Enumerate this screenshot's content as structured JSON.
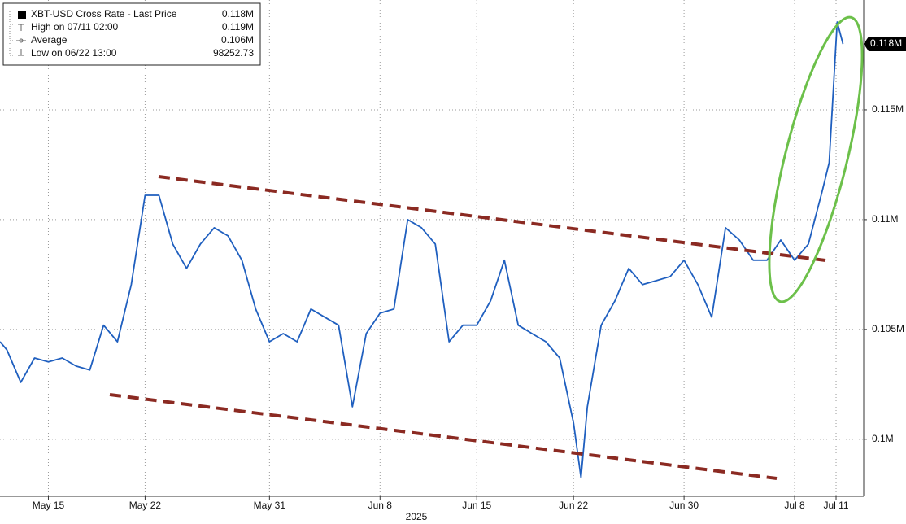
{
  "chart_data": {
    "type": "line",
    "xlabel": "2025",
    "x": [
      "2025-05-11T12:00",
      "2025-05-12",
      "2025-05-13",
      "2025-05-14",
      "2025-05-15",
      "2025-05-16",
      "2025-05-17",
      "2025-05-18",
      "2025-05-19",
      "2025-05-20",
      "2025-05-21",
      "2025-05-22",
      "2025-05-23",
      "2025-05-24",
      "2025-05-25",
      "2025-05-26",
      "2025-05-27",
      "2025-05-28",
      "2025-05-29",
      "2025-05-30",
      "2025-05-31",
      "2025-06-01",
      "2025-06-02",
      "2025-06-03",
      "2025-06-04",
      "2025-06-05",
      "2025-06-06",
      "2025-06-07",
      "2025-06-08",
      "2025-06-09",
      "2025-06-10",
      "2025-06-11",
      "2025-06-12",
      "2025-06-13",
      "2025-06-14",
      "2025-06-15",
      "2025-06-16",
      "2025-06-17",
      "2025-06-18",
      "2025-06-19",
      "2025-06-20",
      "2025-06-21",
      "2025-06-22",
      "2025-06-22T13:00",
      "2025-06-23",
      "2025-06-24",
      "2025-06-25",
      "2025-06-26",
      "2025-06-27",
      "2025-06-28",
      "2025-06-29",
      "2025-06-30",
      "2025-07-01",
      "2025-07-02",
      "2025-07-03",
      "2025-07-04",
      "2025-07-05",
      "2025-07-06",
      "2025-07-07",
      "2025-07-08",
      "2025-07-09",
      "2025-07-10",
      "2025-07-10T12:00",
      "2025-07-11T02:00",
      "2025-07-11T12:00"
    ],
    "series": [
      {
        "name": "XBT-USD Cross Rate - Last Price",
        "color": "#1f5fbf",
        "values": [
          104440,
          104070,
          102590,
          103700,
          103520,
          103700,
          103330,
          103150,
          105190,
          104440,
          107040,
          111110,
          111110,
          108890,
          107780,
          108890,
          109630,
          109260,
          108150,
          105930,
          104440,
          104810,
          104440,
          105930,
          105560,
          105190,
          101480,
          104810,
          105740,
          105930,
          110000,
          109630,
          108890,
          104440,
          105190,
          105190,
          106300,
          108150,
          105190,
          104810,
          104440,
          103700,
          100740,
          98252.73,
          101480,
          105190,
          106300,
          107780,
          107040,
          107220,
          107410,
          108150,
          107040,
          105560,
          109630,
          109070,
          108150,
          108150,
          109070,
          108150,
          108890,
          111300,
          112590,
          119000,
          118000
        ]
      }
    ],
    "legend_stats": [
      {
        "label": "High on 07/11 02:00",
        "value": 119000,
        "value_label": "0.119M"
      },
      {
        "label": "Average",
        "value": 106000,
        "value_label": "0.106M"
      },
      {
        "label": "Low on 06/22 13:00",
        "value": 98252.73
      }
    ],
    "last_value": 118000,
    "last_value_label": "0.118M",
    "xlim": [
      "2025-05-11T12:00",
      "2025-07-13T00:00"
    ],
    "xticks": [
      {
        "value": "2025-05-15",
        "label": "May 15"
      },
      {
        "value": "2025-05-22",
        "label": "May 22"
      },
      {
        "value": "2025-05-31",
        "label": "May 31"
      },
      {
        "value": "2025-06-08",
        "label": "Jun 8"
      },
      {
        "value": "2025-06-15",
        "label": "Jun 15"
      },
      {
        "value": "2025-06-22",
        "label": "Jun 22"
      },
      {
        "value": "2025-06-30",
        "label": "Jun 30"
      },
      {
        "value": "2025-07-08",
        "label": "Jul 8"
      },
      {
        "value": "2025-07-11",
        "label": "Jul 11"
      }
    ],
    "ylim": [
      97400,
      120000
    ],
    "yticks": [
      {
        "value": 100000,
        "label": "0.1M"
      },
      {
        "value": 105000,
        "label": "0.105M"
      },
      {
        "value": 110000,
        "label": "0.11M"
      },
      {
        "value": 115000,
        "label": "0.115M"
      }
    ],
    "grid": true
  }
}
